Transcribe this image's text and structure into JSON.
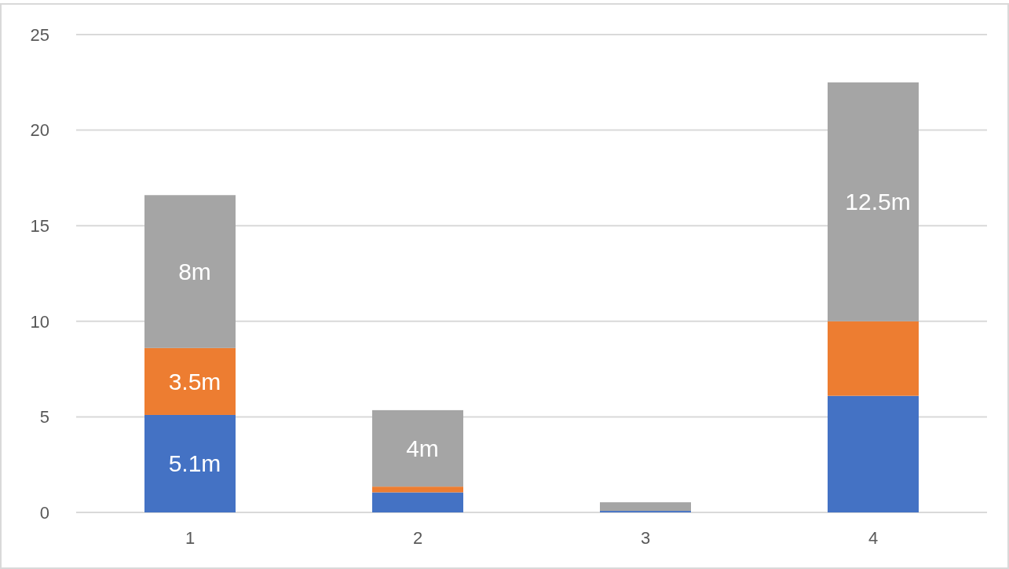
{
  "chart_data": {
    "type": "bar",
    "stacked": true,
    "categories": [
      "1",
      "2",
      "3",
      "4"
    ],
    "series": [
      {
        "color": "#4472c4",
        "values": [
          5.1,
          1.05,
          0.08,
          6.1
        ],
        "value_labels": [
          "5.1m",
          null,
          null,
          null
        ]
      },
      {
        "color": "#ed7d31",
        "values": [
          3.5,
          0.3,
          0,
          3.9
        ],
        "value_labels": [
          "3.5m",
          null,
          null,
          null
        ]
      },
      {
        "color": "#a5a5a5",
        "values": [
          8,
          4,
          0.45,
          12.5
        ],
        "value_labels": [
          "8m",
          "4m",
          null,
          "12.5m"
        ]
      }
    ],
    "ylim": [
      0,
      25
    ],
    "yticks": [
      0,
      5,
      10,
      15,
      20,
      25
    ],
    "grid": "y"
  }
}
